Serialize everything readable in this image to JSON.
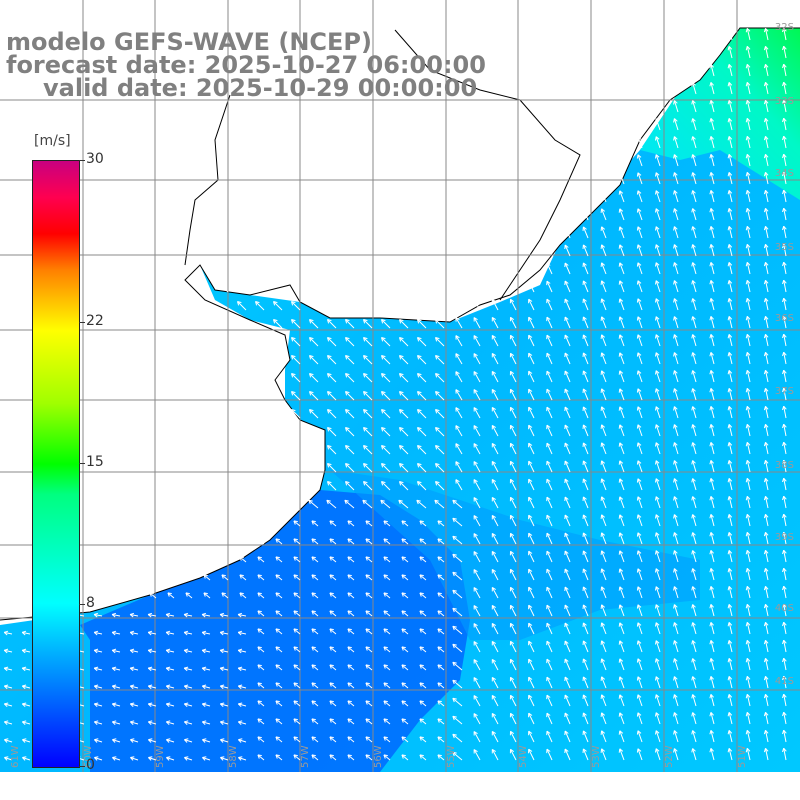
{
  "title": {
    "line1": "modelo GEFS-WAVE (NCEP)",
    "line2": "forecast date: 2025-10-27 06:00:00",
    "line3": "valid date: 2025-10-29 00:00:00"
  },
  "colorbar": {
    "unit": "[m/s]",
    "ticks": [
      "0",
      "8",
      "15",
      "22",
      "30"
    ],
    "range": [
      0,
      30
    ]
  },
  "lat_labels": [
    "32S",
    "33S",
    "34S",
    "35S",
    "36S",
    "37S",
    "38S",
    "39S",
    "40S",
    "41S"
  ],
  "lon_labels": [
    "61W",
    "60W",
    "59W",
    "58W",
    "57W",
    "56W",
    "55W",
    "54W",
    "53W",
    "52W",
    "51W"
  ],
  "colors": {
    "land": "#ffffff",
    "coast": "#000000",
    "grid": "#888888",
    "arrow": "#ffffff",
    "wind_low": "#0050ff",
    "wind_mid": "#00c8ff",
    "wind_cyan": "#00ffff",
    "wind_green": "#00ff60"
  }
}
